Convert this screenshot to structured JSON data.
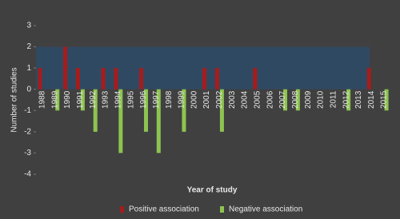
{
  "chart_data": {
    "type": "bar",
    "x_label": "Year of study",
    "y_label": "Number of studies",
    "categories": [
      "1988",
      "1989",
      "1990",
      "1991",
      "1992",
      "1993",
      "1994",
      "1995",
      "1996",
      "1997",
      "1998",
      "1999",
      "2000",
      "2001",
      "2002",
      "2003",
      "2004",
      "2005",
      "2006",
      "2007",
      "2008",
      "2009",
      "2010",
      "2011",
      "2012",
      "2013",
      "2014",
      "2015"
    ],
    "series": [
      {
        "name": "Positive association",
        "color": "#a61c1c",
        "values": [
          1,
          0,
          2,
          1,
          0,
          1,
          1,
          0,
          1,
          0,
          0,
          0,
          0,
          1,
          1,
          0,
          0,
          1,
          0,
          0,
          0,
          0,
          0,
          0,
          0,
          0,
          1,
          0
        ]
      },
      {
        "name": "Negative association",
        "color": "#8dc450",
        "values": [
          0,
          -1,
          0,
          -1,
          -2,
          0,
          -3,
          0,
          -2,
          -3,
          0,
          -2,
          0,
          0,
          -2,
          0,
          0,
          0,
          0,
          -1,
          -1,
          0,
          0,
          0,
          -1,
          0,
          0,
          -1
        ]
      }
    ],
    "ylim": [
      -4,
      3
    ],
    "yticks": [
      -4,
      -3,
      -2,
      -1,
      0,
      1,
      2,
      3
    ],
    "shaded_band": {
      "ylim": [
        0,
        2
      ],
      "color": "#2f4a66"
    },
    "legend": "bottom"
  }
}
